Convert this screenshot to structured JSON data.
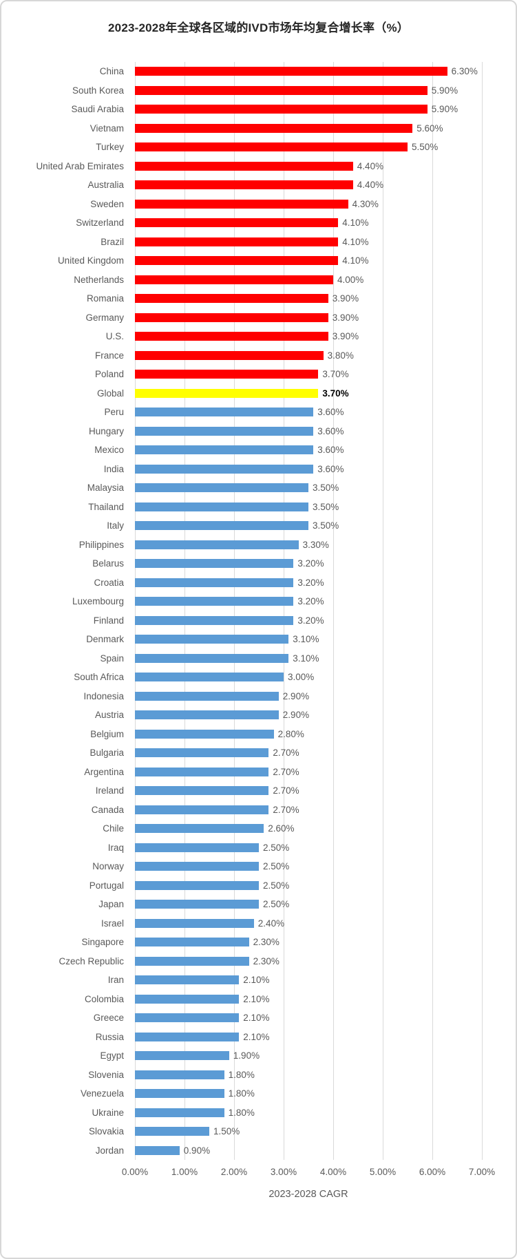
{
  "chart_data": {
    "type": "bar",
    "orientation": "horizontal",
    "title": "2023-2028年全球各区域的IVD市场年均复合增长率（%）",
    "xlabel": "2023-2028 CAGR",
    "xlim": [
      0,
      7
    ],
    "grid": "vertical",
    "legend": "none",
    "x_ticks": [
      "0.00%",
      "1.00%",
      "2.00%",
      "3.00%",
      "4.00%",
      "5.00%",
      "6.00%",
      "7.00%"
    ],
    "colors": {
      "red": "#FF0000",
      "yellow": "#FFFF00",
      "blue": "#5B9BD5"
    },
    "color_meaning": {
      "red": "above global CAGR",
      "yellow": "global CAGR",
      "blue": "below global CAGR"
    },
    "bars": [
      {
        "category": "China",
        "value": 6.3,
        "label": "6.30%",
        "color": "red"
      },
      {
        "category": "South Korea",
        "value": 5.9,
        "label": "5.90%",
        "color": "red"
      },
      {
        "category": "Saudi Arabia",
        "value": 5.9,
        "label": "5.90%",
        "color": "red"
      },
      {
        "category": "Vietnam",
        "value": 5.6,
        "label": "5.60%",
        "color": "red"
      },
      {
        "category": "Turkey",
        "value": 5.5,
        "label": "5.50%",
        "color": "red"
      },
      {
        "category": "United Arab Emirates",
        "value": 4.4,
        "label": "4.40%",
        "color": "red"
      },
      {
        "category": "Australia",
        "value": 4.4,
        "label": "4.40%",
        "color": "red"
      },
      {
        "category": "Sweden",
        "value": 4.3,
        "label": "4.30%",
        "color": "red"
      },
      {
        "category": "Switzerland",
        "value": 4.1,
        "label": "4.10%",
        "color": "red"
      },
      {
        "category": "Brazil",
        "value": 4.1,
        "label": "4.10%",
        "color": "red"
      },
      {
        "category": "United Kingdom",
        "value": 4.1,
        "label": "4.10%",
        "color": "red"
      },
      {
        "category": "Netherlands",
        "value": 4.0,
        "label": "4.00%",
        "color": "red"
      },
      {
        "category": "Romania",
        "value": 3.9,
        "label": "3.90%",
        "color": "red"
      },
      {
        "category": "Germany",
        "value": 3.9,
        "label": "3.90%",
        "color": "red"
      },
      {
        "category": "U.S.",
        "value": 3.9,
        "label": "3.90%",
        "color": "red"
      },
      {
        "category": "France",
        "value": 3.8,
        "label": "3.80%",
        "color": "red"
      },
      {
        "category": "Poland",
        "value": 3.7,
        "label": "3.70%",
        "color": "red"
      },
      {
        "category": "Global",
        "value": 3.7,
        "label": "3.70%",
        "color": "yellow",
        "emphasis": true
      },
      {
        "category": "Peru",
        "value": 3.6,
        "label": "3.60%",
        "color": "blue"
      },
      {
        "category": "Hungary",
        "value": 3.6,
        "label": "3.60%",
        "color": "blue"
      },
      {
        "category": "Mexico",
        "value": 3.6,
        "label": "3.60%",
        "color": "blue"
      },
      {
        "category": "India",
        "value": 3.6,
        "label": "3.60%",
        "color": "blue"
      },
      {
        "category": "Malaysia",
        "value": 3.5,
        "label": "3.50%",
        "color": "blue"
      },
      {
        "category": "Thailand",
        "value": 3.5,
        "label": "3.50%",
        "color": "blue"
      },
      {
        "category": "Italy",
        "value": 3.5,
        "label": "3.50%",
        "color": "blue"
      },
      {
        "category": "Philippines",
        "value": 3.3,
        "label": "3.30%",
        "color": "blue"
      },
      {
        "category": "Belarus",
        "value": 3.2,
        "label": "3.20%",
        "color": "blue"
      },
      {
        "category": "Croatia",
        "value": 3.2,
        "label": "3.20%",
        "color": "blue"
      },
      {
        "category": "Luxembourg",
        "value": 3.2,
        "label": "3.20%",
        "color": "blue"
      },
      {
        "category": "Finland",
        "value": 3.2,
        "label": "3.20%",
        "color": "blue"
      },
      {
        "category": "Denmark",
        "value": 3.1,
        "label": "3.10%",
        "color": "blue"
      },
      {
        "category": "Spain",
        "value": 3.1,
        "label": "3.10%",
        "color": "blue"
      },
      {
        "category": "South Africa",
        "value": 3.0,
        "label": "3.00%",
        "color": "blue"
      },
      {
        "category": "Indonesia",
        "value": 2.9,
        "label": "2.90%",
        "color": "blue"
      },
      {
        "category": "Austria",
        "value": 2.9,
        "label": "2.90%",
        "color": "blue"
      },
      {
        "category": "Belgium",
        "value": 2.8,
        "label": "2.80%",
        "color": "blue"
      },
      {
        "category": "Bulgaria",
        "value": 2.7,
        "label": "2.70%",
        "color": "blue"
      },
      {
        "category": "Argentina",
        "value": 2.7,
        "label": "2.70%",
        "color": "blue"
      },
      {
        "category": "Ireland",
        "value": 2.7,
        "label": "2.70%",
        "color": "blue"
      },
      {
        "category": "Canada",
        "value": 2.7,
        "label": "2.70%",
        "color": "blue"
      },
      {
        "category": "Chile",
        "value": 2.6,
        "label": "2.60%",
        "color": "blue"
      },
      {
        "category": "Iraq",
        "value": 2.5,
        "label": "2.50%",
        "color": "blue"
      },
      {
        "category": "Norway",
        "value": 2.5,
        "label": "2.50%",
        "color": "blue"
      },
      {
        "category": "Portugal",
        "value": 2.5,
        "label": "2.50%",
        "color": "blue"
      },
      {
        "category": "Japan",
        "value": 2.5,
        "label": "2.50%",
        "color": "blue"
      },
      {
        "category": "Israel",
        "value": 2.4,
        "label": "2.40%",
        "color": "blue"
      },
      {
        "category": "Singapore",
        "value": 2.3,
        "label": "2.30%",
        "color": "blue"
      },
      {
        "category": "Czech Republic",
        "value": 2.3,
        "label": "2.30%",
        "color": "blue"
      },
      {
        "category": "Iran",
        "value": 2.1,
        "label": "2.10%",
        "color": "blue"
      },
      {
        "category": "Colombia",
        "value": 2.1,
        "label": "2.10%",
        "color": "blue"
      },
      {
        "category": "Greece",
        "value": 2.1,
        "label": "2.10%",
        "color": "blue"
      },
      {
        "category": "Russia",
        "value": 2.1,
        "label": "2.10%",
        "color": "blue"
      },
      {
        "category": "Egypt",
        "value": 1.9,
        "label": "1.90%",
        "color": "blue"
      },
      {
        "category": "Slovenia",
        "value": 1.8,
        "label": "1.80%",
        "color": "blue"
      },
      {
        "category": "Venezuela",
        "value": 1.8,
        "label": "1.80%",
        "color": "blue"
      },
      {
        "category": "Ukraine",
        "value": 1.8,
        "label": "1.80%",
        "color": "blue"
      },
      {
        "category": "Slovakia",
        "value": 1.5,
        "label": "1.50%",
        "color": "blue"
      },
      {
        "category": "Jordan",
        "value": 0.9,
        "label": "0.90%",
        "color": "blue"
      }
    ]
  }
}
